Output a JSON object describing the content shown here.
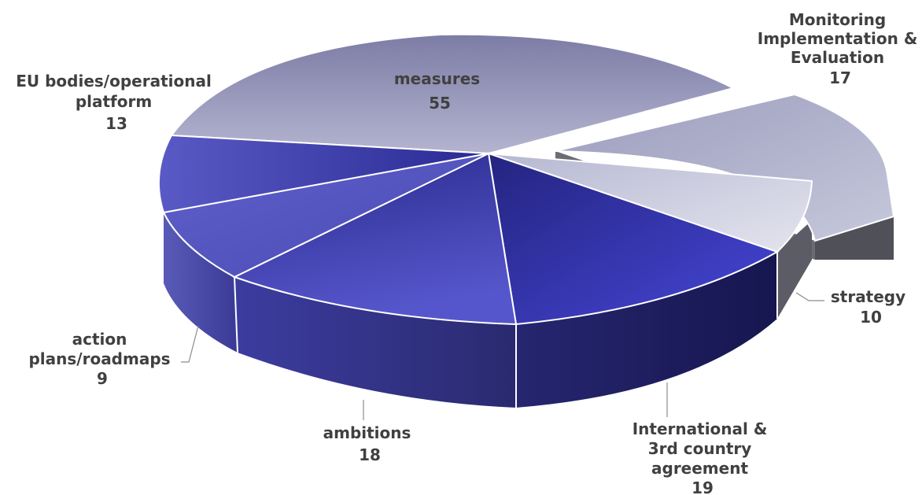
{
  "chart_data": {
    "type": "pie",
    "style": "3d-exploded",
    "title": "",
    "slices": [
      {
        "label": [
          "Monitoring",
          "Implementation &",
          "Evaluation"
        ],
        "value": 17,
        "color": "#aeb0cc",
        "exploded": true
      },
      {
        "label": [
          "strategy"
        ],
        "value": 10,
        "color": "#cfd0e2"
      },
      {
        "label": [
          "International &",
          "3rd country",
          "agreement"
        ],
        "value": 19,
        "color": "#3b3bc0"
      },
      {
        "label": [
          "ambitions"
        ],
        "value": 18,
        "color": "#4848b8"
      },
      {
        "label": [
          "action",
          "plans/roadmaps"
        ],
        "value": 9,
        "color": "#5656c4"
      },
      {
        "label": [
          "EU bodies/operational",
          "platform"
        ],
        "value": 13,
        "color": "#3f3fb0"
      },
      {
        "label": [
          "measures"
        ],
        "value": 55,
        "color": "#9a9ac0"
      }
    ]
  }
}
